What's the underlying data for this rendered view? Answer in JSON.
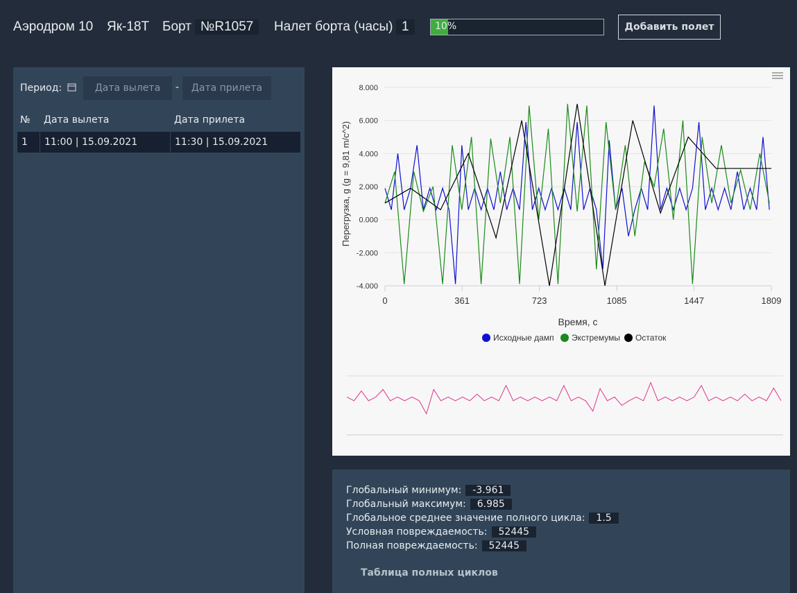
{
  "header": {
    "airfield": "Аэродром 10",
    "aircraft": "Як-18Т",
    "board_label": "Борт",
    "board": "№R1057",
    "hours_label": "Налет борта (часы)",
    "hours": "1",
    "progress": {
      "value": 10,
      "label": "10%"
    },
    "button": "Добавить полет"
  },
  "period": {
    "label": "Период:",
    "from": "Дата вылета",
    "separator": "-",
    "to": "Дата прилета"
  },
  "table": {
    "columns": [
      "№",
      "Дата вылета",
      "Дата прилета"
    ],
    "rows": [
      [
        "1",
        "11:00  |  15.09.2021",
        "11:30  |  15.09.2021"
      ]
    ]
  },
  "chart_data": {
    "type": "line",
    "x_label": "Время, с",
    "y_label": "Перегрузка, g (g = 9,81 m/c^2)",
    "xlim": [
      0,
      1809
    ],
    "xticks": [
      0,
      361,
      723,
      1085,
      1447,
      1809
    ],
    "ylim": [
      -4,
      8
    ],
    "yticks": [
      {
        "value": -4,
        "label": "-4.000"
      },
      {
        "value": -2,
        "label": "-2.000"
      },
      {
        "value": 0,
        "label": "0.000"
      },
      {
        "value": 2,
        "label": "2.000"
      },
      {
        "value": 4,
        "label": "4.000"
      },
      {
        "value": 6,
        "label": "6.000"
      },
      {
        "value": 8,
        "label": "8.000"
      }
    ],
    "grid": true,
    "legend": "bottom",
    "navigator_color": "#e0338e",
    "series": [
      {
        "name": "Исходные дамп",
        "color": "#1010d0",
        "x": [
          0,
          30,
          60,
          90,
          120,
          150,
          180,
          210,
          240,
          270,
          300,
          330,
          360,
          390,
          420,
          450,
          480,
          510,
          540,
          570,
          600,
          630,
          660,
          690,
          720,
          750,
          780,
          810,
          840,
          870,
          900,
          930,
          960,
          990,
          1020,
          1050,
          1080,
          1110,
          1140,
          1170,
          1200,
          1230,
          1260,
          1290,
          1320,
          1350,
          1380,
          1410,
          1440,
          1470,
          1500,
          1530,
          1560,
          1590,
          1620,
          1650,
          1680,
          1710,
          1740,
          1770,
          1800
        ],
        "values": [
          1.9,
          0.6,
          4.0,
          0.6,
          1.9,
          4.5,
          0.6,
          1.9,
          0.6,
          1.9,
          0.6,
          -3.9,
          4.5,
          0.6,
          1.9,
          0.6,
          1.9,
          0.6,
          2.9,
          0.6,
          1.9,
          0.6,
          5.9,
          0.6,
          1.9,
          0.6,
          1.9,
          0.6,
          1.9,
          0.6,
          5.9,
          0.6,
          1.9,
          0.6,
          -3.0,
          4.8,
          0.6,
          1.9,
          -1.0,
          0.6,
          1.9,
          0.6,
          6.9,
          0.6,
          1.9,
          0.6,
          1.9,
          0.6,
          1.9,
          5.9,
          0.6,
          1.9,
          0.6,
          1.9,
          0.6,
          2.9,
          0.6,
          1.9,
          0.6,
          5.0,
          0.6
        ]
      },
      {
        "name": "Экстремумы",
        "color": "#1a8a1a",
        "x": [
          0,
          45,
          90,
          135,
          180,
          225,
          270,
          315,
          360,
          405,
          450,
          495,
          540,
          585,
          630,
          675,
          720,
          765,
          810,
          855,
          900,
          945,
          990,
          1035,
          1080,
          1125,
          1170,
          1215,
          1260,
          1305,
          1350,
          1395,
          1440,
          1485,
          1530,
          1575,
          1620,
          1665,
          1710,
          1755,
          1800
        ],
        "values": [
          1.0,
          2.9,
          -3.9,
          2.9,
          0.5,
          2.0,
          -3.9,
          4.5,
          0.6,
          5.0,
          -3.9,
          4.9,
          1.0,
          5.0,
          -3.9,
          6.9,
          0.0,
          5.5,
          -3.9,
          7.0,
          0.5,
          6.9,
          -3.0,
          5.9,
          0.6,
          4.5,
          -1.0,
          3.5,
          2.0,
          5.5,
          0.0,
          6.0,
          -3.9,
          5.0,
          1.0,
          4.5,
          1.0,
          3.0,
          0.6,
          4.0,
          1.0
        ]
      },
      {
        "name": "Остаток",
        "color": "#000000",
        "x": [
          0,
          120,
          260,
          390,
          520,
          640,
          770,
          900,
          1030,
          1160,
          1290,
          1420,
          1550,
          1809
        ],
        "values": [
          1.0,
          1.9,
          0.6,
          4.0,
          -1.1,
          6.0,
          -4.0,
          7.0,
          -4.0,
          6.0,
          0.4,
          5.0,
          3.1,
          3.1
        ]
      }
    ]
  },
  "stats": {
    "rows": [
      {
        "label": "Глобальный минимум:",
        "value": "-3.961"
      },
      {
        "label": "Глобальный максимум:",
        "value": "6.985"
      },
      {
        "label": "Глобальное среднее значение полного цикла:",
        "value": "1.5"
      },
      {
        "label": "Условная повреждаемость:",
        "value": "52445"
      },
      {
        "label": "Полная повреждаемость:",
        "value": "52445"
      }
    ],
    "link": "Таблица полных циклов"
  }
}
